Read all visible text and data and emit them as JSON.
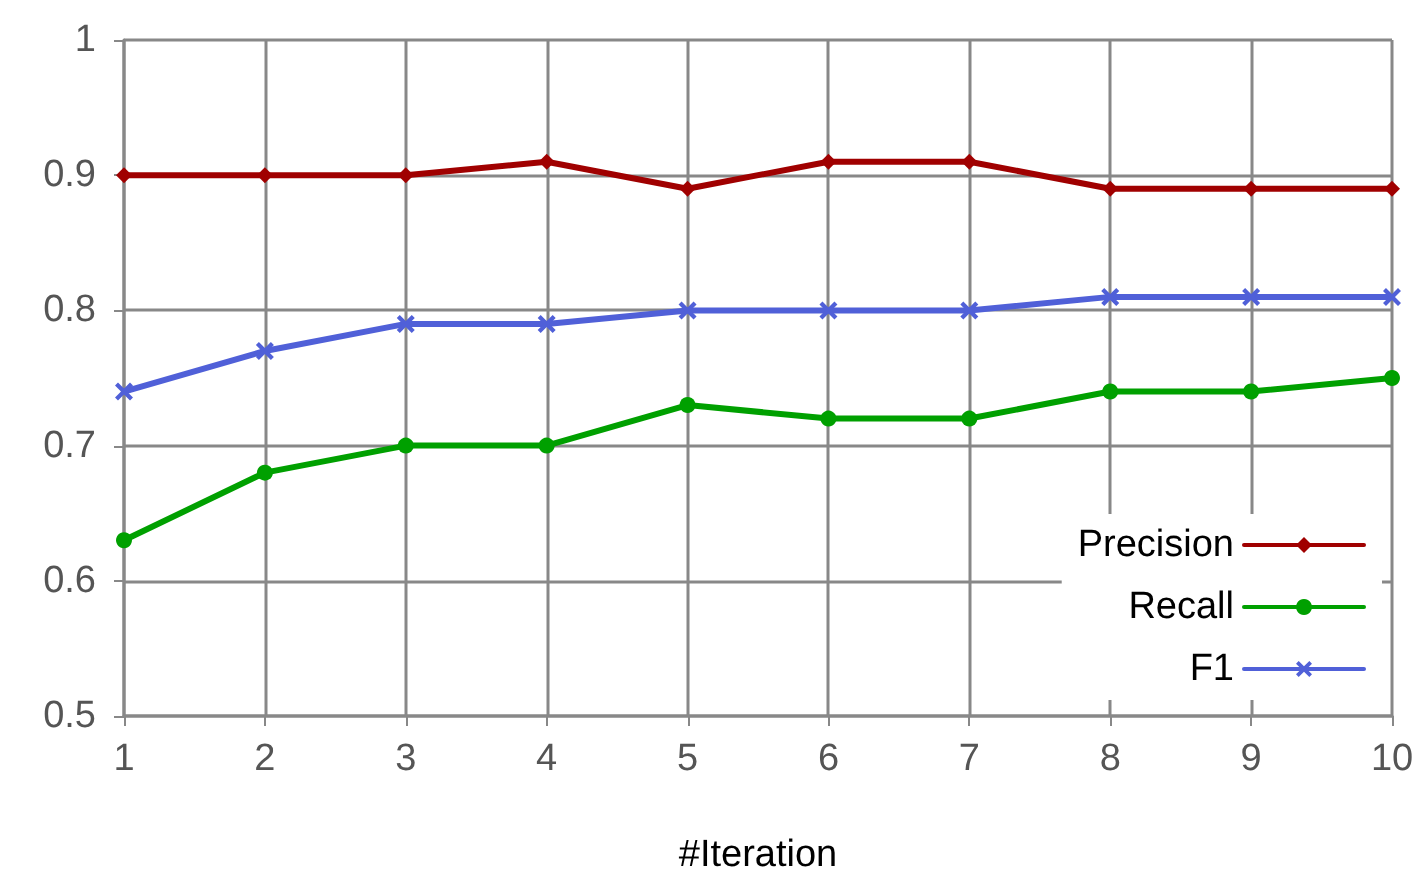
{
  "chart_data": {
    "type": "line",
    "xlabel": "#Iteration",
    "x": [
      1,
      2,
      3,
      4,
      5,
      6,
      7,
      8,
      9,
      10
    ],
    "series": [
      {
        "name": "Precision",
        "color": "#a00000",
        "marker": "diamond",
        "values": [
          0.9,
          0.9,
          0.9,
          0.91,
          0.89,
          0.91,
          0.91,
          0.89,
          0.89,
          0.89
        ]
      },
      {
        "name": "Recall",
        "color": "#00a000",
        "marker": "circle",
        "values": [
          0.63,
          0.68,
          0.7,
          0.7,
          0.73,
          0.72,
          0.72,
          0.74,
          0.74,
          0.75
        ]
      },
      {
        "name": "F1",
        "color": "#5060d8",
        "marker": "cross",
        "values": [
          0.74,
          0.77,
          0.79,
          0.79,
          0.8,
          0.8,
          0.8,
          0.81,
          0.81,
          0.81
        ]
      }
    ],
    "xlim": [
      1,
      10
    ],
    "xticks": [
      1,
      2,
      3,
      4,
      5,
      6,
      7,
      8,
      9,
      10
    ],
    "ylim": [
      0.5,
      1
    ],
    "yticks": [
      0.5,
      0.6,
      0.7,
      0.8,
      0.9,
      1
    ],
    "grid": true,
    "legend": "bottom right",
    "line_style": "solid"
  }
}
